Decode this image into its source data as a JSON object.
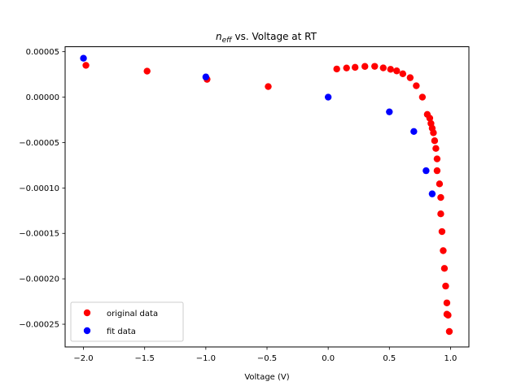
{
  "chart_data": {
    "type": "scatter",
    "title_main": "n",
    "title_sub": "eff",
    "title_rest": " vs. Voltage at RT",
    "xlabel": "Voltage (V)",
    "ylabel": "",
    "xlim": [
      -2.15,
      1.15
    ],
    "ylim": [
      -0.000275,
      5.55e-05
    ],
    "xticks": [
      -2.0,
      -1.5,
      -1.0,
      -0.5,
      0.0,
      0.5,
      1.0
    ],
    "xtick_labels": [
      "−2.0",
      "−1.5",
      "−1.0",
      "−0.5",
      "0.0",
      "0.5",
      "1.0"
    ],
    "yticks": [
      5e-05,
      0.0,
      -5e-05,
      -0.0001,
      -0.00015,
      -0.0002,
      -0.00025
    ],
    "ytick_labels": [
      "0.00005",
      "0.00000",
      "−0.00005",
      "−0.00010",
      "−0.00015",
      "−0.00020",
      "−0.00025"
    ],
    "legend_position": "lower-left",
    "series": [
      {
        "name": "original data",
        "color": "#ff0000",
        "points": [
          [
            -1.98,
            3.5e-05
          ],
          [
            -1.48,
            2.86e-05
          ],
          [
            -0.99,
            1.96e-05
          ],
          [
            -0.49,
            1.16e-05
          ],
          [
            0.07,
            3.1e-05
          ],
          [
            0.15,
            3.21e-05
          ],
          [
            0.22,
            3.28e-05
          ],
          [
            0.3,
            3.38e-05
          ],
          [
            0.38,
            3.39e-05
          ],
          [
            0.45,
            3.22e-05
          ],
          [
            0.51,
            3.06e-05
          ],
          [
            0.56,
            2.89e-05
          ],
          [
            0.61,
            2.57e-05
          ],
          [
            0.67,
            2.14e-05
          ],
          [
            0.72,
            1.25e-05
          ],
          [
            0.77,
            0.0
          ],
          [
            0.81,
            -1.9e-05
          ],
          [
            0.83,
            -2.32e-05
          ],
          [
            0.84,
            -2.9e-05
          ],
          [
            0.85,
            -3.42e-05
          ],
          [
            0.86,
            -3.92e-05
          ],
          [
            0.87,
            -4.8e-05
          ],
          [
            0.88,
            -5.65e-05
          ],
          [
            0.89,
            -6.8e-05
          ],
          [
            0.89,
            -8.1e-05
          ],
          [
            0.91,
            -9.55e-05
          ],
          [
            0.92,
            -0.0001105
          ],
          [
            0.92,
            -0.0001285
          ],
          [
            0.93,
            -0.000148
          ],
          [
            0.94,
            -0.000169
          ],
          [
            0.95,
            -0.0001885
          ],
          [
            0.96,
            -0.000208
          ],
          [
            0.97,
            -0.0002265
          ],
          [
            0.97,
            -0.000239
          ],
          [
            0.98,
            -0.00024
          ],
          [
            0.99,
            -0.000258
          ]
        ]
      },
      {
        "name": "fit data",
        "color": "#0000ff",
        "points": [
          [
            -2.0,
            4.28e-05
          ],
          [
            -1.0,
            2.22e-05
          ],
          [
            0.0,
            0.0
          ],
          [
            0.5,
            -1.62e-05
          ],
          [
            0.7,
            -3.78e-05
          ],
          [
            0.8,
            -8.1e-05
          ],
          [
            0.85,
            -0.0001065
          ]
        ]
      }
    ]
  }
}
